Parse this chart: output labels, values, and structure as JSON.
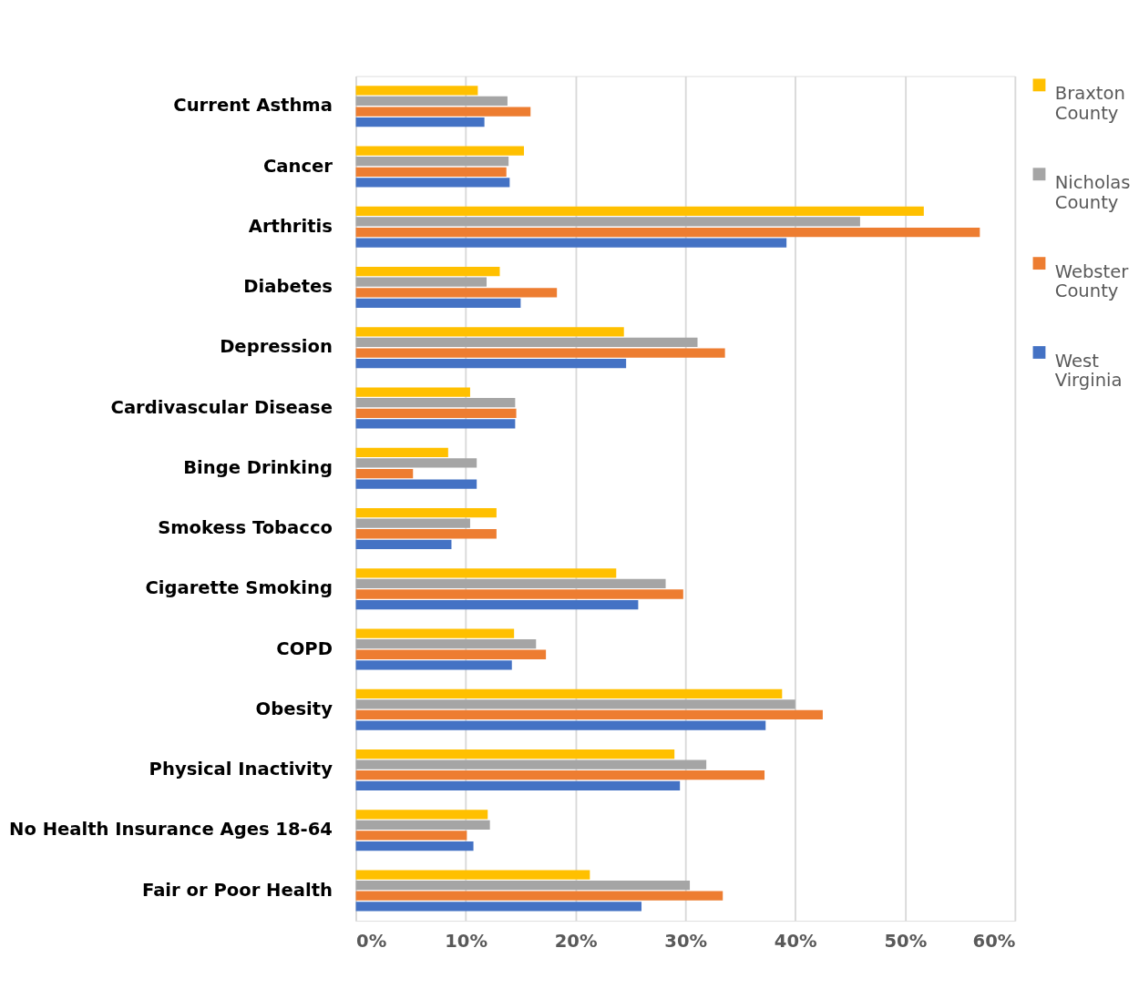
{
  "chart_data": {
    "type": "bar",
    "orientation": "horizontal",
    "categories": [
      "Current Asthma",
      "Cancer",
      "Arthritis",
      "Diabetes",
      "Depression",
      "Cardivascular Disease",
      "Binge Drinking",
      "Smokess Tobacco",
      "Cigarette Smoking",
      "COPD",
      "Obesity",
      "Physical Inactivity",
      "No Health Insurance Ages 18-64",
      "Fair or Poor Health"
    ],
    "series": [
      {
        "name": "Braxton County",
        "color": "#ffc000",
        "values": [
          11.1,
          15.3,
          51.7,
          13.1,
          24.4,
          10.4,
          8.4,
          12.8,
          23.7,
          14.4,
          38.8,
          29.0,
          12.0,
          21.3
        ]
      },
      {
        "name": "Nicholas County",
        "color": "#a5a5a5",
        "values": [
          13.8,
          13.9,
          45.9,
          11.9,
          31.1,
          14.5,
          11.0,
          10.4,
          28.2,
          16.4,
          40.0,
          31.9,
          12.2,
          30.4
        ]
      },
      {
        "name": "Webster County",
        "color": "#ed7d31",
        "values": [
          15.9,
          13.7,
          56.8,
          18.3,
          33.6,
          14.6,
          5.2,
          12.8,
          29.8,
          17.3,
          42.5,
          37.2,
          10.1,
          33.4
        ]
      },
      {
        "name": "West Virginia",
        "color": "#4472c4",
        "values": [
          11.7,
          14.0,
          39.2,
          15.0,
          24.6,
          14.5,
          11.0,
          8.7,
          25.7,
          14.2,
          37.3,
          29.5,
          10.7,
          26.0
        ]
      }
    ],
    "xlim": [
      0,
      60
    ],
    "xticks": [
      {
        "value": 0,
        "label": "0%"
      },
      {
        "value": 10,
        "label": "10%"
      },
      {
        "value": 20,
        "label": "20%"
      },
      {
        "value": 30,
        "label": "30%"
      },
      {
        "value": 40,
        "label": "40%"
      },
      {
        "value": 50,
        "label": "50%"
      },
      {
        "value": 60,
        "label": "60%"
      }
    ],
    "grid": "x",
    "legend": "right"
  }
}
